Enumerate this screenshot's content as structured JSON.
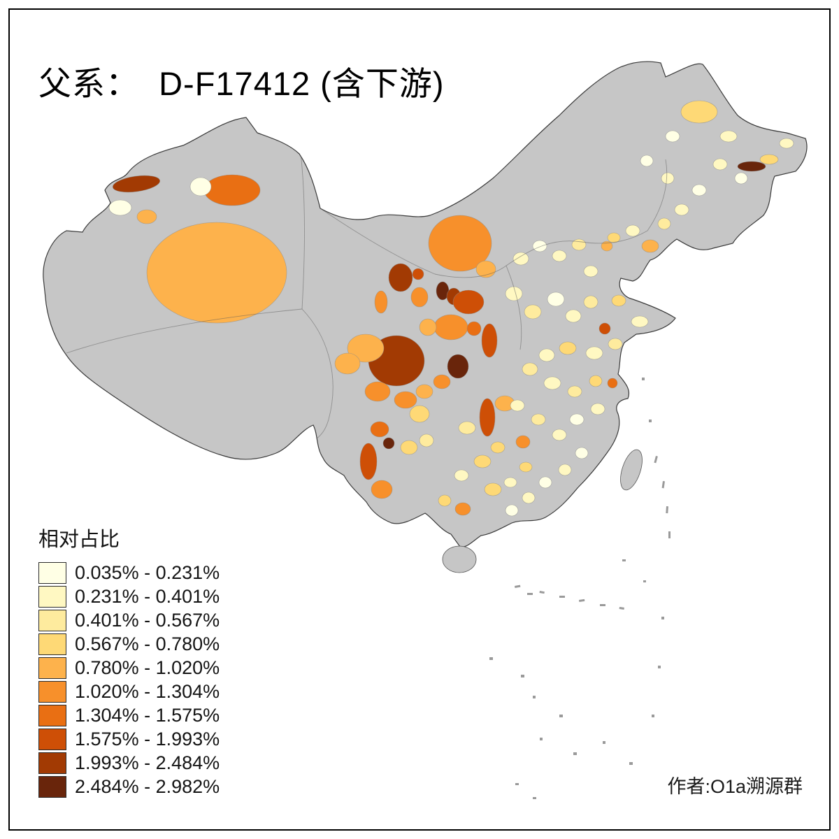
{
  "title": "父系：  D-F17412 (含下游)",
  "legend": {
    "title": "相对占比",
    "no_data_color": "#C6C6C6",
    "items": [
      {
        "range": "0.035% - 0.231%",
        "color": "#FFFFE5"
      },
      {
        "range": "0.231% - 0.401%",
        "color": "#FFF8C2"
      },
      {
        "range": "0.401% - 0.567%",
        "color": "#FEEB9E"
      },
      {
        "range": "0.567% - 0.780%",
        "color": "#FED976"
      },
      {
        "range": "0.780% - 1.020%",
        "color": "#FDB24C"
      },
      {
        "range": "1.020% - 1.304%",
        "color": "#F7902B"
      },
      {
        "range": "1.304% - 1.575%",
        "color": "#E96F13"
      },
      {
        "range": "1.575% - 1.993%",
        "color": "#CE4F06"
      },
      {
        "range": "1.993% - 2.484%",
        "color": "#A23A03"
      },
      {
        "range": "2.484% - 2.982%",
        "color": "#69250B"
      }
    ]
  },
  "credit": "作者:O1a溯源群"
}
